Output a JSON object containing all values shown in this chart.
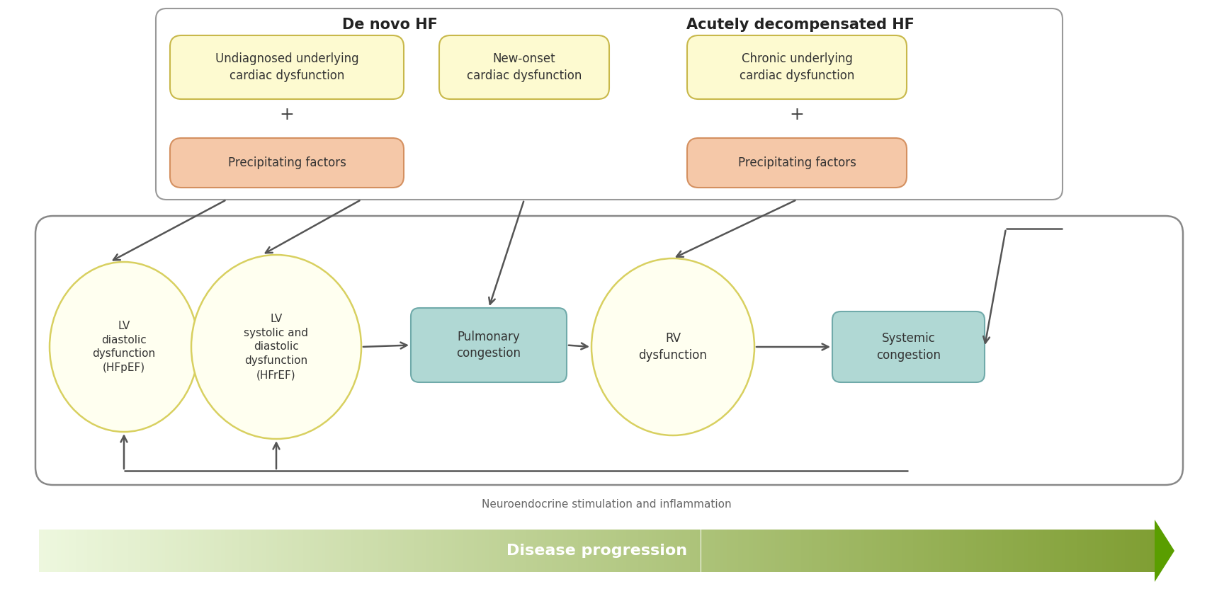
{
  "bg_color": "#ffffff",
  "top_box_border": "#999999",
  "yellow_fill": "#fdfad0",
  "yellow_border": "#c8b84a",
  "salmon_fill": "#f5c8a8",
  "salmon_border": "#d49060",
  "teal_fill": "#b0d8d4",
  "teal_border": "#70aaaa",
  "circle_fill": "#fffff0",
  "circle_border": "#d8d060",
  "arrow_color": "#555555",
  "feedback_border": "#888888",
  "green_dark": "#5a9e00",
  "green_light": "#e8f5cc",
  "neuro_text": "Neuroendocrine stimulation and inflammation",
  "disease_text": "Disease progression",
  "de_novo_label": "De novo HF",
  "acutely_label": "Acutely decompensated HF",
  "undiagnosed_text": "Undiagnosed underlying\ncardiac dysfunction",
  "new_onset_text": "New-onset\ncardiac dysfunction",
  "chronic_text": "Chronic underlying\ncardiac dysfunction",
  "precip1_text": "Precipitating factors",
  "precip2_text": "Precipitating factors",
  "lv_diastolic_text": "LV\ndiastolic\ndysfunction\n(HFpEF)",
  "lv_systolic_text": "LV\nsystolic and\ndiastolic\ndysfunction\n(HFrEF)",
  "rv_text": "RV\ndysfunction",
  "pulmonary_text": "Pulmonary\ncongestion",
  "systemic_text": "Systemic\ncongestion"
}
